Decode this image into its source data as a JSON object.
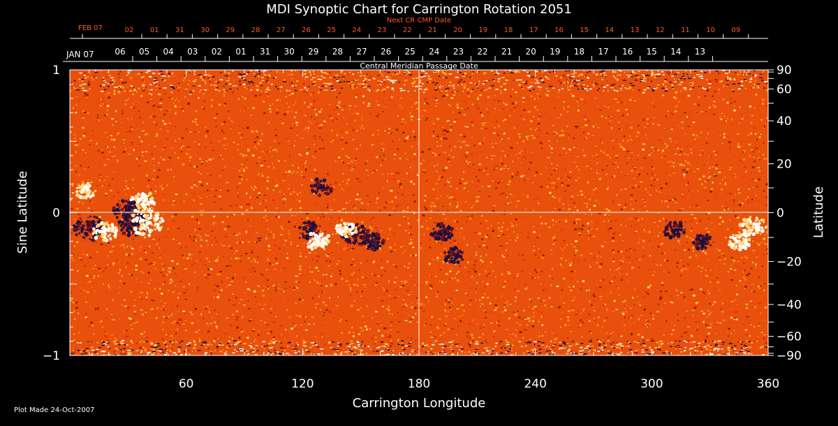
{
  "chart_data": {
    "type": "heatmap",
    "title": "MDI Synoptic Chart for Carrington Rotation 2051",
    "xlabel": "Carrington Longitude",
    "ylabel_left": "Sine Latitude",
    "ylabel_right": "Latitude",
    "xlim": [
      0,
      360
    ],
    "ylim": [
      -1,
      1
    ],
    "x_ticks": [
      60,
      120,
      180,
      240,
      300,
      360
    ],
    "y_left_ticks": [
      {
        "value": 1,
        "label": "1"
      },
      {
        "value": 0,
        "label": "0"
      },
      {
        "value": -1,
        "label": "−1"
      }
    ],
    "y_right_ticks": [
      90,
      60,
      40,
      20,
      0,
      -20,
      -40,
      -60,
      -90
    ],
    "y_right_tick_labels": [
      "90",
      "60",
      "40",
      "20",
      "0",
      "−20",
      "−40",
      "−60",
      "−90"
    ],
    "top_axis_label": "Central Meridian Passage Date",
    "top_axis_start_label": "JAN 07",
    "top_axis_dates": [
      "06",
      "05",
      "04",
      "03",
      "02",
      "01",
      "31",
      "30",
      "29",
      "28",
      "27",
      "26",
      "25",
      "24",
      "23",
      "22",
      "21",
      "20",
      "19",
      "18",
      "17",
      "16",
      "15",
      "14",
      "13"
    ],
    "next_cr_label": "Next CR CMP Date",
    "next_cr_start_label": "FEB 07",
    "next_cr_dates": [
      "02",
      "01",
      "31",
      "30",
      "29",
      "28",
      "27",
      "26",
      "25",
      "24",
      "23",
      "22",
      "21",
      "20",
      "19",
      "18",
      "17",
      "16",
      "15",
      "14",
      "13",
      "12",
      "11",
      "10",
      "09"
    ],
    "reference_lines": {
      "longitude": 180,
      "sine_latitude": 0
    },
    "active_regions": [
      {
        "lon": 10,
        "sinlat": -0.11,
        "polarity": "negative",
        "strength": 0.9
      },
      {
        "lon": 18,
        "sinlat": -0.13,
        "polarity": "positive",
        "strength": 0.6
      },
      {
        "lon": 30,
        "sinlat": 0.02,
        "polarity": "negative",
        "strength": 0.8
      },
      {
        "lon": 33,
        "sinlat": -0.08,
        "polarity": "negative",
        "strength": 0.9
      },
      {
        "lon": 40,
        "sinlat": -0.07,
        "polarity": "positive",
        "strength": 1.0
      },
      {
        "lon": 38,
        "sinlat": 0.07,
        "polarity": "positive",
        "strength": 0.7
      },
      {
        "lon": 8,
        "sinlat": 0.15,
        "polarity": "positive",
        "strength": 0.4
      },
      {
        "lon": 124,
        "sinlat": -0.12,
        "polarity": "negative",
        "strength": 0.5
      },
      {
        "lon": 128,
        "sinlat": -0.2,
        "polarity": "positive",
        "strength": 0.6
      },
      {
        "lon": 147,
        "sinlat": -0.16,
        "polarity": "negative",
        "strength": 0.8
      },
      {
        "lon": 157,
        "sinlat": -0.2,
        "polarity": "negative",
        "strength": 0.6
      },
      {
        "lon": 142,
        "sinlat": -0.12,
        "polarity": "positive",
        "strength": 0.5
      },
      {
        "lon": 130,
        "sinlat": 0.18,
        "polarity": "negative",
        "strength": 0.5
      },
      {
        "lon": 192,
        "sinlat": -0.14,
        "polarity": "negative",
        "strength": 0.5
      },
      {
        "lon": 198,
        "sinlat": -0.3,
        "polarity": "negative",
        "strength": 0.4
      },
      {
        "lon": 312,
        "sinlat": -0.12,
        "polarity": "negative",
        "strength": 0.5
      },
      {
        "lon": 326,
        "sinlat": -0.2,
        "polarity": "negative",
        "strength": 0.4
      },
      {
        "lon": 352,
        "sinlat": -0.1,
        "polarity": "positive",
        "strength": 0.7
      },
      {
        "lon": 345,
        "sinlat": -0.2,
        "polarity": "positive",
        "strength": 0.5
      }
    ],
    "colors": {
      "background_field": "#e8500c",
      "positive": "#ffffff",
      "negative": "#1a1040",
      "grid": "#ffffff",
      "next_cr_text": "#ff5a1f"
    }
  },
  "footer": {
    "plot_made": "Plot Made 24-Oct-2007"
  }
}
